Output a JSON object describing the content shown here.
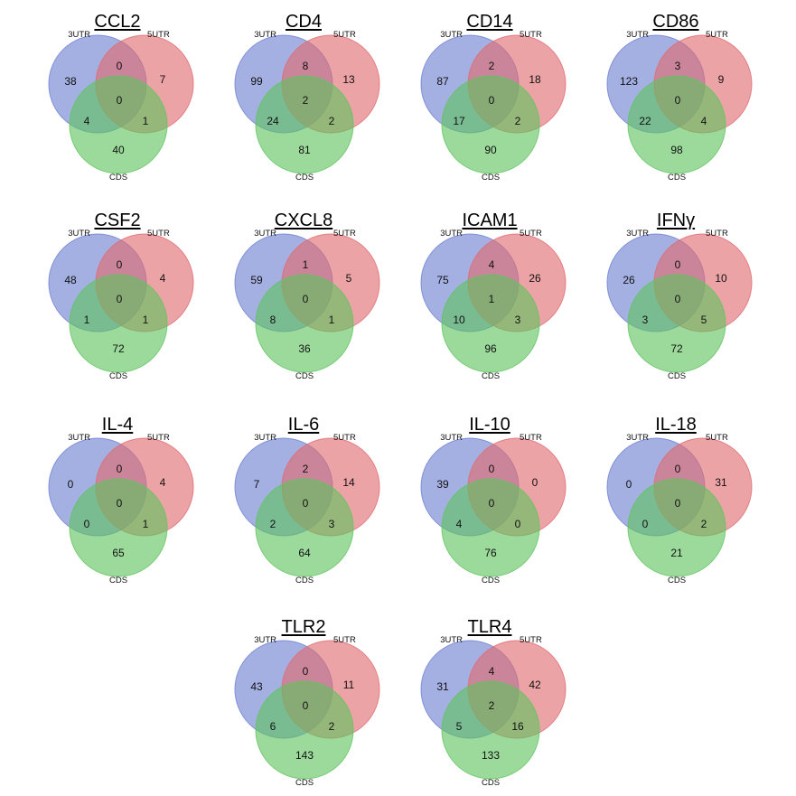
{
  "set_labels": {
    "a": "3UTR",
    "b": "5UTR",
    "c": "CDS"
  },
  "colors": {
    "a": "#6d7fd0",
    "b": "#e06a70",
    "c": "#5fc45f"
  },
  "diagrams": [
    {
      "title": "CCL2",
      "counts": {
        "a": "38",
        "b": "7",
        "c": "40",
        "ab": "0",
        "ac": "4",
        "bc": "1",
        "abc": "0"
      }
    },
    {
      "title": "CD4",
      "counts": {
        "a": "99",
        "b": "13",
        "c": "81",
        "ab": "8",
        "ac": "24",
        "bc": "2",
        "abc": "2"
      }
    },
    {
      "title": "CD14",
      "counts": {
        "a": "87",
        "b": "18",
        "c": "90",
        "ab": "2",
        "ac": "17",
        "bc": "2",
        "abc": "0"
      }
    },
    {
      "title": "CD86",
      "counts": {
        "a": "123",
        "b": "9",
        "c": "98",
        "ab": "3",
        "ac": "22",
        "bc": "4",
        "abc": "0"
      }
    },
    {
      "title": "CSF2",
      "counts": {
        "a": "48",
        "b": "4",
        "c": "72",
        "ab": "0",
        "ac": "1",
        "bc": "1",
        "abc": "0"
      }
    },
    {
      "title": "CXCL8",
      "counts": {
        "a": "59",
        "b": "5",
        "c": "36",
        "ab": "1",
        "ac": "8",
        "bc": "1",
        "abc": "0"
      }
    },
    {
      "title": "ICAM1",
      "counts": {
        "a": "75",
        "b": "26",
        "c": "96",
        "ab": "4",
        "ac": "10",
        "bc": "3",
        "abc": "1"
      }
    },
    {
      "title": "IFNγ",
      "counts": {
        "a": "26",
        "b": "10",
        "c": "72",
        "ab": "0",
        "ac": "3",
        "bc": "5",
        "abc": "0"
      }
    },
    {
      "title": "IL-4",
      "counts": {
        "a": "0",
        "b": "4",
        "c": "65",
        "ab": "0",
        "ac": "0",
        "bc": "1",
        "abc": "0"
      }
    },
    {
      "title": "IL-6",
      "counts": {
        "a": "7",
        "b": "14",
        "c": "64",
        "ab": "2",
        "ac": "2",
        "bc": "3",
        "abc": "0"
      }
    },
    {
      "title": "IL-10",
      "counts": {
        "a": "39",
        "b": "0",
        "c": "76",
        "ab": "0",
        "ac": "4",
        "bc": "0",
        "abc": "0"
      }
    },
    {
      "title": "IL-18",
      "counts": {
        "a": "0",
        "b": "31",
        "c": "21",
        "ab": "0",
        "ac": "0",
        "bc": "2",
        "abc": "0"
      }
    },
    {
      "title": "TLR2",
      "counts": {
        "a": "43",
        "b": "11",
        "c": "143",
        "ab": "0",
        "ac": "6",
        "bc": "2",
        "abc": "0"
      }
    },
    {
      "title": "TLR4",
      "counts": {
        "a": "31",
        "b": "42",
        "c": "133",
        "ab": "4",
        "ac": "5",
        "bc": "16",
        "abc": "2"
      }
    }
  ]
}
